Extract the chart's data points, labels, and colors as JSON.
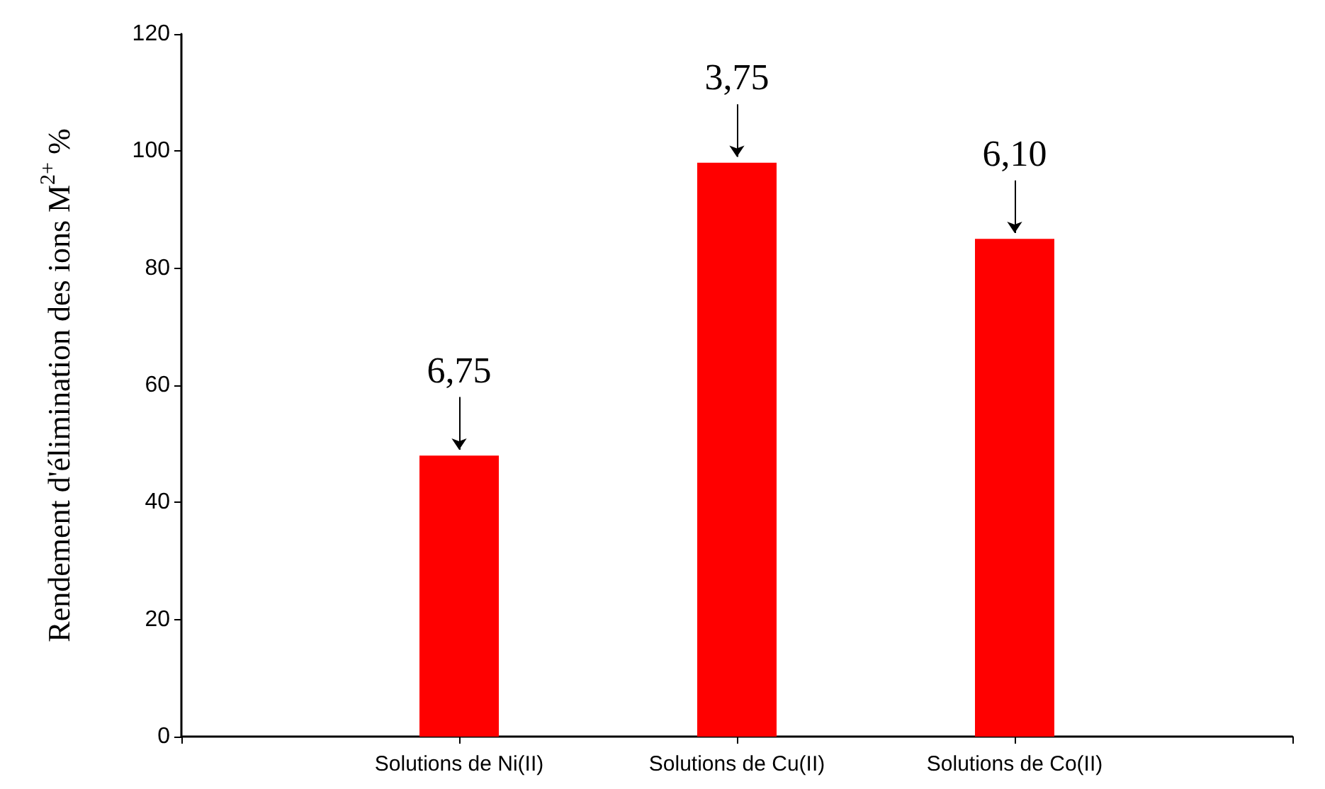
{
  "chart_data": {
    "type": "bar",
    "ylabel": "Rendement d'élimination des ions M$^{2+}$ %",
    "categories": [
      null,
      "Solutions de Ni(II)",
      "Solutions de Cu(II)",
      "Solutions de Co(II)",
      null
    ],
    "values": [
      null,
      48,
      98,
      85,
      null
    ],
    "color": "#ff0000",
    "ylim": [
      0,
      120
    ],
    "yticks": [
      0,
      20,
      40,
      60,
      80,
      100,
      120
    ],
    "annotations": [
      {
        "text": "6,75",
        "x": "Solutions de Ni(II)",
        "y": 48
      },
      {
        "text": "3,75",
        "x": "Solutions de Cu(II)",
        "y": 98
      },
      {
        "text": "6,10",
        "x": "Solutions de Co(II)",
        "y": 85
      }
    ],
    "grid": false
  }
}
